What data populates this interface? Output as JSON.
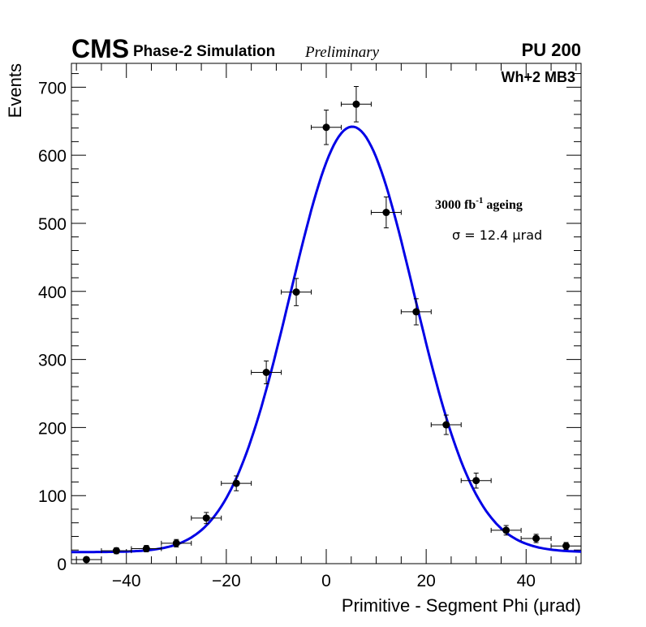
{
  "header": {
    "experiment": "CMS",
    "subtitle": "Phase-2 Simulation",
    "status": "Preliminary",
    "pileup": "PU 200"
  },
  "chart_data": {
    "type": "scatter",
    "title": "",
    "xlabel": "Primitive - Segment Phi (μrad)",
    "ylabel": "Events",
    "xlim": [
      -51,
      51
    ],
    "ylim": [
      0,
      735
    ],
    "xticks": [
      -40,
      -20,
      0,
      20,
      40
    ],
    "xtick_labels": [
      "−40",
      "−20",
      "0",
      "20",
      "40"
    ],
    "yticks": [
      0,
      100,
      200,
      300,
      400,
      500,
      600,
      700
    ],
    "ytick_labels": [
      "0",
      "100",
      "200",
      "300",
      "400",
      "500",
      "600",
      "700"
    ],
    "bin_half_width": 3,
    "series": [
      {
        "name": "Simulation",
        "x": [
          -48,
          -42,
          -36,
          -30,
          -24,
          -18,
          -12,
          -6,
          0,
          6,
          12,
          18,
          24,
          30,
          36,
          42,
          48
        ],
        "y": [
          6,
          19,
          22,
          30,
          67,
          118,
          281,
          399,
          641,
          675,
          516,
          370,
          204,
          122,
          49,
          37,
          26
        ],
        "yerr": [
          2.5,
          4.4,
          4.7,
          5.5,
          8.2,
          10.9,
          16.8,
          20.0,
          25.3,
          26.0,
          22.7,
          19.2,
          14.3,
          11.0,
          7.0,
          6.1,
          5.1
        ]
      }
    ],
    "fit": {
      "name": "Gaussian fit",
      "amplitude": 625,
      "mean": 5.2,
      "sigma": 12.4,
      "constant": 17,
      "color": "#0000e6"
    },
    "annotations": {
      "region": "Wh+2 MB3",
      "ageing_prefix": "3000 fb",
      "ageing_exp": "-1",
      "ageing_suffix": " ageing",
      "sigma_text": "σ = 12.4 μrad"
    }
  }
}
